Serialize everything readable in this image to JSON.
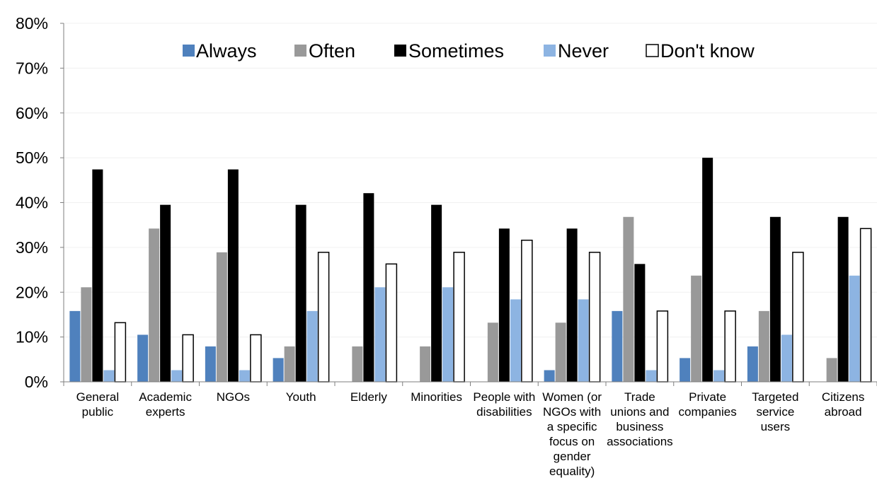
{
  "chart_data": {
    "type": "bar",
    "title": "",
    "xlabel": "",
    "ylabel": "",
    "ylim": [
      0,
      80
    ],
    "yticks": [
      "0%",
      "10%",
      "20%",
      "30%",
      "40%",
      "50%",
      "60%",
      "70%",
      "80%"
    ],
    "grid": true,
    "legend_position": "top",
    "categories": [
      [
        "General",
        "public"
      ],
      [
        "Academic",
        "experts"
      ],
      [
        "NGOs"
      ],
      [
        "Youth"
      ],
      [
        "Elderly"
      ],
      [
        "Minorities"
      ],
      [
        "People with",
        "disabilities"
      ],
      [
        "Women (or",
        "NGOs with",
        "a specific",
        "focus on",
        "gender",
        "equality)"
      ],
      [
        "Trade",
        "unions and",
        "business",
        "associations"
      ],
      [
        "Private",
        "companies"
      ],
      [
        "Targeted",
        "service",
        "users"
      ],
      [
        "Citizens",
        "abroad"
      ]
    ],
    "series": [
      {
        "name": "Always",
        "color": "#4f81bd",
        "values": [
          15.8,
          10.5,
          7.9,
          5.3,
          0,
          0,
          0,
          2.6,
          15.8,
          5.3,
          7.9,
          0
        ]
      },
      {
        "name": "Often",
        "color": "#999999",
        "values": [
          21.1,
          34.2,
          28.9,
          7.9,
          7.9,
          7.9,
          13.2,
          13.2,
          36.8,
          23.7,
          15.8,
          5.3
        ]
      },
      {
        "name": "Sometimes",
        "color": "#000000",
        "values": [
          47.4,
          39.5,
          47.4,
          39.5,
          42.1,
          39.5,
          34.2,
          34.2,
          26.3,
          50.0,
          36.8,
          36.8
        ]
      },
      {
        "name": "Never",
        "color": "#8db4e2",
        "values": [
          2.6,
          2.6,
          2.6,
          15.8,
          21.1,
          21.1,
          18.4,
          18.4,
          2.6,
          2.6,
          10.5,
          23.7
        ]
      },
      {
        "name": "Don't know",
        "color": "#ffffff",
        "values": [
          13.2,
          10.5,
          10.5,
          28.9,
          26.3,
          28.9,
          31.6,
          28.9,
          15.8,
          15.8,
          28.9,
          34.2
        ]
      }
    ]
  }
}
